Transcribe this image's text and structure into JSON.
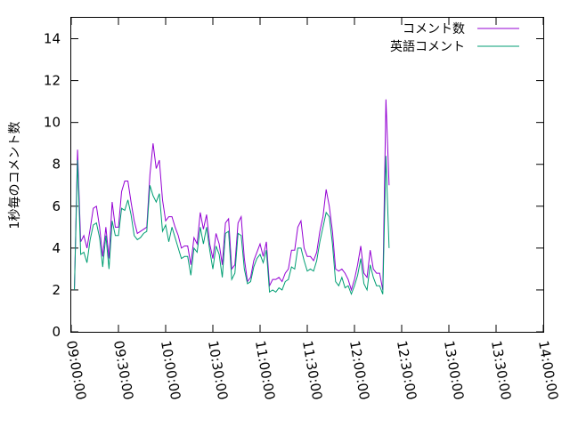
{
  "chart_data": {
    "type": "line",
    "title": "",
    "xlabel": "",
    "ylabel": "1秒毎のコメント数",
    "ylim": [
      0,
      15
    ],
    "yticks": [
      0,
      2,
      4,
      6,
      8,
      10,
      12,
      14
    ],
    "x_tick_labels": [
      "09:00:00",
      "09:30:00",
      "10:00:00",
      "10:30:00",
      "11:00:00",
      "11:30:00",
      "12:00:00",
      "12:30:00",
      "13:00:00",
      "13:30:00",
      "14:00:00"
    ],
    "x_range": [
      "09:00:00",
      "14:00:00"
    ],
    "x_interval_seconds": 120,
    "x_start": "09:02:00",
    "legend_position": "top-right",
    "grid": false,
    "series": [
      {
        "name": "コメント数",
        "color": "#9400d3",
        "values": [
          2.0,
          8.7,
          4.3,
          4.6,
          4.0,
          4.9,
          5.9,
          6.0,
          5.0,
          3.6,
          5.0,
          3.5,
          6.2,
          5.0,
          5.0,
          6.7,
          7.2,
          7.2,
          6.2,
          5.3,
          4.7,
          4.8,
          4.9,
          5.0,
          7.5,
          9.0,
          7.8,
          8.2,
          6.3,
          5.3,
          5.5,
          5.5,
          5.0,
          4.6,
          4.0,
          4.1,
          4.1,
          3.2,
          4.5,
          4.2,
          5.7,
          4.9,
          5.6,
          4.2,
          3.5,
          4.7,
          4.2,
          3.2,
          5.2,
          5.4,
          3.0,
          3.2,
          5.2,
          5.5,
          3.5,
          2.4,
          2.6,
          3.4,
          3.8,
          4.2,
          3.6,
          4.3,
          2.2,
          2.5,
          2.5,
          2.6,
          2.4,
          2.8,
          3.0,
          3.9,
          3.9,
          5.0,
          5.3,
          4.0,
          3.6,
          3.6,
          3.4,
          3.8,
          4.8,
          5.5,
          6.8,
          6.0,
          4.8,
          3.0,
          2.9,
          3.0,
          2.8,
          2.5,
          2.0,
          2.5,
          3.2,
          4.1,
          2.8,
          2.6,
          3.9,
          3.0,
          2.8,
          2.8,
          2.0,
          11.1,
          7.0
        ]
      },
      {
        "name": "英語コメント",
        "color": "#009e73",
        "values": [
          2.0,
          8.2,
          3.7,
          3.8,
          3.3,
          4.4,
          5.1,
          5.2,
          4.5,
          3.1,
          4.6,
          3.0,
          5.3,
          4.6,
          4.6,
          5.9,
          5.8,
          6.3,
          5.6,
          4.6,
          4.4,
          4.5,
          4.7,
          4.8,
          7.0,
          6.5,
          6.2,
          6.6,
          4.8,
          5.1,
          4.3,
          5.0,
          4.5,
          4.0,
          3.5,
          3.6,
          3.6,
          2.7,
          4.0,
          3.8,
          5.0,
          4.2,
          5.0,
          3.9,
          3.0,
          4.1,
          3.7,
          2.6,
          4.7,
          4.8,
          2.5,
          2.8,
          4.7,
          4.6,
          3.0,
          2.3,
          2.4,
          3.1,
          3.5,
          3.7,
          3.3,
          3.9,
          1.9,
          2.0,
          1.9,
          2.1,
          2.0,
          2.4,
          2.5,
          3.1,
          3.0,
          4.0,
          4.0,
          3.4,
          2.9,
          3.0,
          2.9,
          3.4,
          4.3,
          5.0,
          5.7,
          5.5,
          4.2,
          2.4,
          2.2,
          2.6,
          2.1,
          2.2,
          1.8,
          2.2,
          2.7,
          3.5,
          2.3,
          2.0,
          3.2,
          2.6,
          2.2,
          2.2,
          1.8,
          8.4,
          4.0
        ]
      }
    ]
  }
}
